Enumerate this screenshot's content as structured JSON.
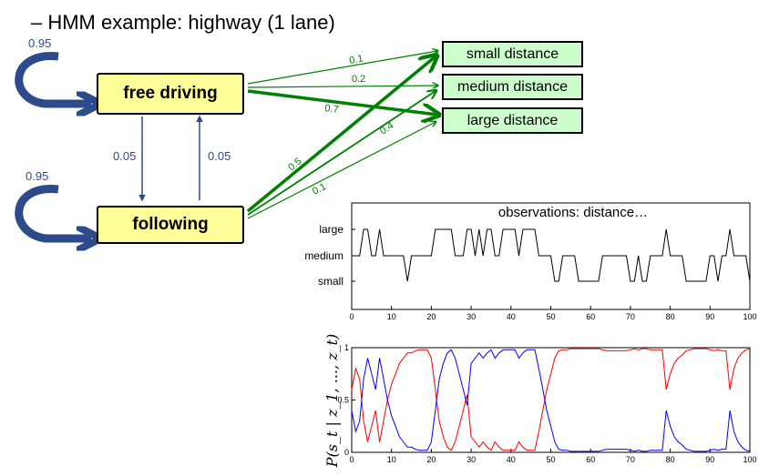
{
  "title": "– HMM example: highway (1 lane)",
  "states": {
    "free_driving": "free driving",
    "following": "following"
  },
  "observations": {
    "small": "small distance",
    "medium": "medium distance",
    "large": "large distance"
  },
  "transitions": {
    "free_self": "0.95",
    "following_self": "0.95",
    "free_to_following": "0.05",
    "following_to_free": "0.05"
  },
  "emissions": {
    "free_small": "0.1",
    "free_medium": "0.2",
    "free_large": "0.7",
    "following_small": "0.5",
    "following_medium": "0.4",
    "following_large": "0.1"
  },
  "colors": {
    "state_fill": "#ffff99",
    "obs_fill": "#ccffcc",
    "transition_arrow": "#2d4a8a",
    "emission_arrow": "#008000",
    "posterior_red": "#ff0000",
    "posterior_blue": "#0000ff"
  },
  "chart_data": [
    {
      "type": "line",
      "title": "observations: distance…",
      "xlim": [
        0,
        100
      ],
      "xticks": [
        "0",
        "10",
        "20",
        "30",
        "40",
        "50",
        "60",
        "70",
        "80",
        "90",
        "100"
      ],
      "ycategories": [
        "small",
        "medium",
        "large"
      ],
      "series": [
        {
          "x": [
            0,
            1,
            2,
            3,
            4,
            5,
            6,
            7,
            8,
            9,
            10,
            11,
            12,
            13,
            14,
            15,
            16,
            17,
            18,
            19,
            20,
            21,
            22,
            23,
            24,
            25,
            26,
            27,
            28,
            29,
            30,
            31,
            32,
            33,
            34,
            35,
            36,
            37,
            38,
            39,
            40,
            41,
            42,
            43,
            44,
            45,
            46,
            47,
            48,
            49,
            50,
            51,
            52,
            53,
            54,
            55,
            56,
            57,
            58,
            59,
            60,
            61,
            62,
            63,
            64,
            65,
            66,
            67,
            68,
            69,
            70,
            71,
            72,
            73,
            74,
            75,
            76,
            77,
            78,
            79,
            80,
            81,
            82,
            83,
            84,
            85,
            86,
            87,
            88,
            89,
            90,
            91,
            92,
            93,
            94,
            95,
            96,
            97,
            98,
            99,
            100
          ],
          "y": [
            1,
            1,
            1,
            2,
            2,
            1,
            1,
            2,
            1,
            1,
            1,
            1,
            1,
            1,
            0,
            1,
            1,
            1,
            1,
            1,
            1,
            2,
            2,
            2,
            2,
            2,
            1,
            1,
            1,
            2,
            2,
            1,
            2,
            1,
            2,
            2,
            1,
            1,
            2,
            2,
            2,
            2,
            1,
            2,
            2,
            2,
            2,
            1,
            1,
            1,
            1,
            0,
            0,
            1,
            1,
            1,
            1,
            0,
            0,
            0,
            0,
            0,
            0,
            1,
            1,
            1,
            1,
            1,
            1,
            1,
            0,
            0,
            1,
            0,
            0,
            1,
            1,
            1,
            1,
            2,
            1,
            1,
            1,
            1,
            0,
            0,
            0,
            0,
            0,
            0,
            1,
            1,
            0,
            1,
            1,
            2,
            1,
            1,
            1,
            1,
            0
          ]
        }
      ]
    },
    {
      "type": "line",
      "ylabel": "P(s_t | z_1, ..., z_t)",
      "xlim": [
        0,
        100
      ],
      "ylim": [
        0,
        1
      ],
      "xticks": [
        "0",
        "10",
        "20",
        "30",
        "40",
        "50",
        "60",
        "70",
        "80",
        "90",
        "100"
      ],
      "yticks": [
        "0",
        "0.5",
        "1"
      ],
      "series": [
        {
          "color": "red",
          "x": [
            0,
            1,
            2,
            3,
            4,
            5,
            6,
            7,
            8,
            9,
            10,
            11,
            12,
            13,
            14,
            15,
            16,
            17,
            18,
            19,
            20,
            21,
            22,
            23,
            24,
            25,
            26,
            27,
            28,
            29,
            30,
            31,
            32,
            33,
            34,
            35,
            36,
            37,
            38,
            39,
            40,
            41,
            42,
            43,
            44,
            45,
            46,
            47,
            48,
            49,
            50,
            51,
            52,
            53,
            54,
            55,
            56,
            57,
            58,
            59,
            60,
            61,
            62,
            63,
            64,
            65,
            66,
            67,
            68,
            69,
            70,
            71,
            72,
            73,
            74,
            75,
            76,
            77,
            78,
            79,
            80,
            81,
            82,
            83,
            84,
            85,
            86,
            87,
            88,
            89,
            90,
            91,
            92,
            93,
            94,
            95,
            96,
            97,
            98,
            99,
            100
          ],
          "y": [
            0.6,
            0.8,
            0.7,
            0.3,
            0.1,
            0.25,
            0.4,
            0.1,
            0.3,
            0.5,
            0.65,
            0.75,
            0.85,
            0.9,
            0.95,
            0.95,
            0.97,
            0.98,
            0.98,
            0.98,
            0.9,
            0.6,
            0.3,
            0.15,
            0.05,
            0.02,
            0.1,
            0.25,
            0.4,
            0.55,
            0.15,
            0.1,
            0.05,
            0.1,
            0.05,
            0.02,
            0.1,
            0.05,
            0.02,
            0.02,
            0.02,
            0.02,
            0.1,
            0.05,
            0.02,
            0.02,
            0.02,
            0.2,
            0.4,
            0.6,
            0.75,
            0.9,
            0.97,
            0.98,
            0.98,
            0.99,
            0.99,
            0.99,
            0.99,
            0.99,
            0.99,
            0.99,
            0.99,
            0.98,
            0.97,
            0.97,
            0.97,
            0.97,
            0.97,
            0.97,
            0.98,
            0.99,
            0.98,
            0.99,
            0.99,
            0.98,
            0.98,
            0.98,
            0.98,
            0.6,
            0.75,
            0.85,
            0.9,
            0.93,
            0.97,
            0.98,
            0.99,
            0.99,
            0.99,
            0.99,
            0.98,
            0.97,
            0.98,
            0.97,
            0.97,
            0.6,
            0.8,
            0.9,
            0.95,
            0.98,
            0.99
          ]
        },
        {
          "color": "blue",
          "x": [
            0,
            1,
            2,
            3,
            4,
            5,
            6,
            7,
            8,
            9,
            10,
            11,
            12,
            13,
            14,
            15,
            16,
            17,
            18,
            19,
            20,
            21,
            22,
            23,
            24,
            25,
            26,
            27,
            28,
            29,
            30,
            31,
            32,
            33,
            34,
            35,
            36,
            37,
            38,
            39,
            40,
            41,
            42,
            43,
            44,
            45,
            46,
            47,
            48,
            49,
            50,
            51,
            52,
            53,
            54,
            55,
            56,
            57,
            58,
            59,
            60,
            61,
            62,
            63,
            64,
            65,
            66,
            67,
            68,
            69,
            70,
            71,
            72,
            73,
            74,
            75,
            76,
            77,
            78,
            79,
            80,
            81,
            82,
            83,
            84,
            85,
            86,
            87,
            88,
            89,
            90,
            91,
            92,
            93,
            94,
            95,
            96,
            97,
            98,
            99,
            100
          ],
          "y": [
            0.4,
            0.2,
            0.3,
            0.7,
            0.9,
            0.75,
            0.6,
            0.9,
            0.7,
            0.5,
            0.35,
            0.25,
            0.15,
            0.1,
            0.05,
            0.05,
            0.03,
            0.02,
            0.02,
            0.02,
            0.1,
            0.4,
            0.7,
            0.85,
            0.95,
            0.98,
            0.9,
            0.75,
            0.6,
            0.45,
            0.85,
            0.9,
            0.95,
            0.9,
            0.95,
            0.98,
            0.9,
            0.95,
            0.98,
            0.98,
            0.98,
            0.98,
            0.9,
            0.95,
            0.98,
            0.98,
            0.98,
            0.8,
            0.6,
            0.4,
            0.25,
            0.1,
            0.03,
            0.02,
            0.02,
            0.01,
            0.01,
            0.01,
            0.01,
            0.01,
            0.01,
            0.01,
            0.01,
            0.02,
            0.03,
            0.03,
            0.03,
            0.03,
            0.03,
            0.03,
            0.02,
            0.01,
            0.02,
            0.01,
            0.01,
            0.02,
            0.02,
            0.02,
            0.02,
            0.4,
            0.25,
            0.15,
            0.1,
            0.07,
            0.03,
            0.02,
            0.01,
            0.01,
            0.01,
            0.01,
            0.02,
            0.03,
            0.02,
            0.03,
            0.03,
            0.4,
            0.2,
            0.1,
            0.05,
            0.02,
            0.01
          ]
        }
      ]
    }
  ]
}
